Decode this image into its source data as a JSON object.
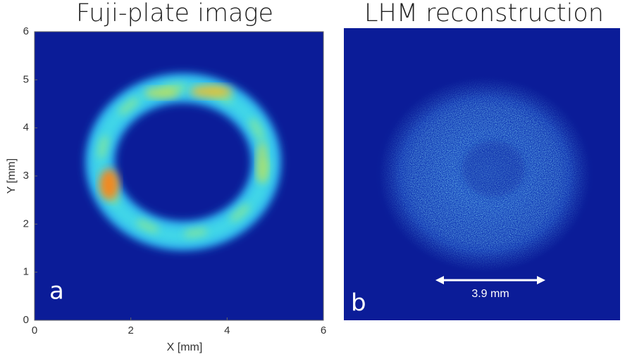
{
  "panels": [
    {
      "title": "Fuji-plate image",
      "label": "a",
      "x_axis": {
        "label": "X [mm]",
        "ticks": [
          0,
          2,
          4,
          6
        ]
      },
      "y_axis": {
        "label": "Y [mm]",
        "ticks": [
          0,
          1,
          2,
          3,
          4,
          5,
          6
        ]
      }
    },
    {
      "title": "LHM reconstruction",
      "label": "b",
      "scale_bar": "3.9 mm"
    }
  ]
}
